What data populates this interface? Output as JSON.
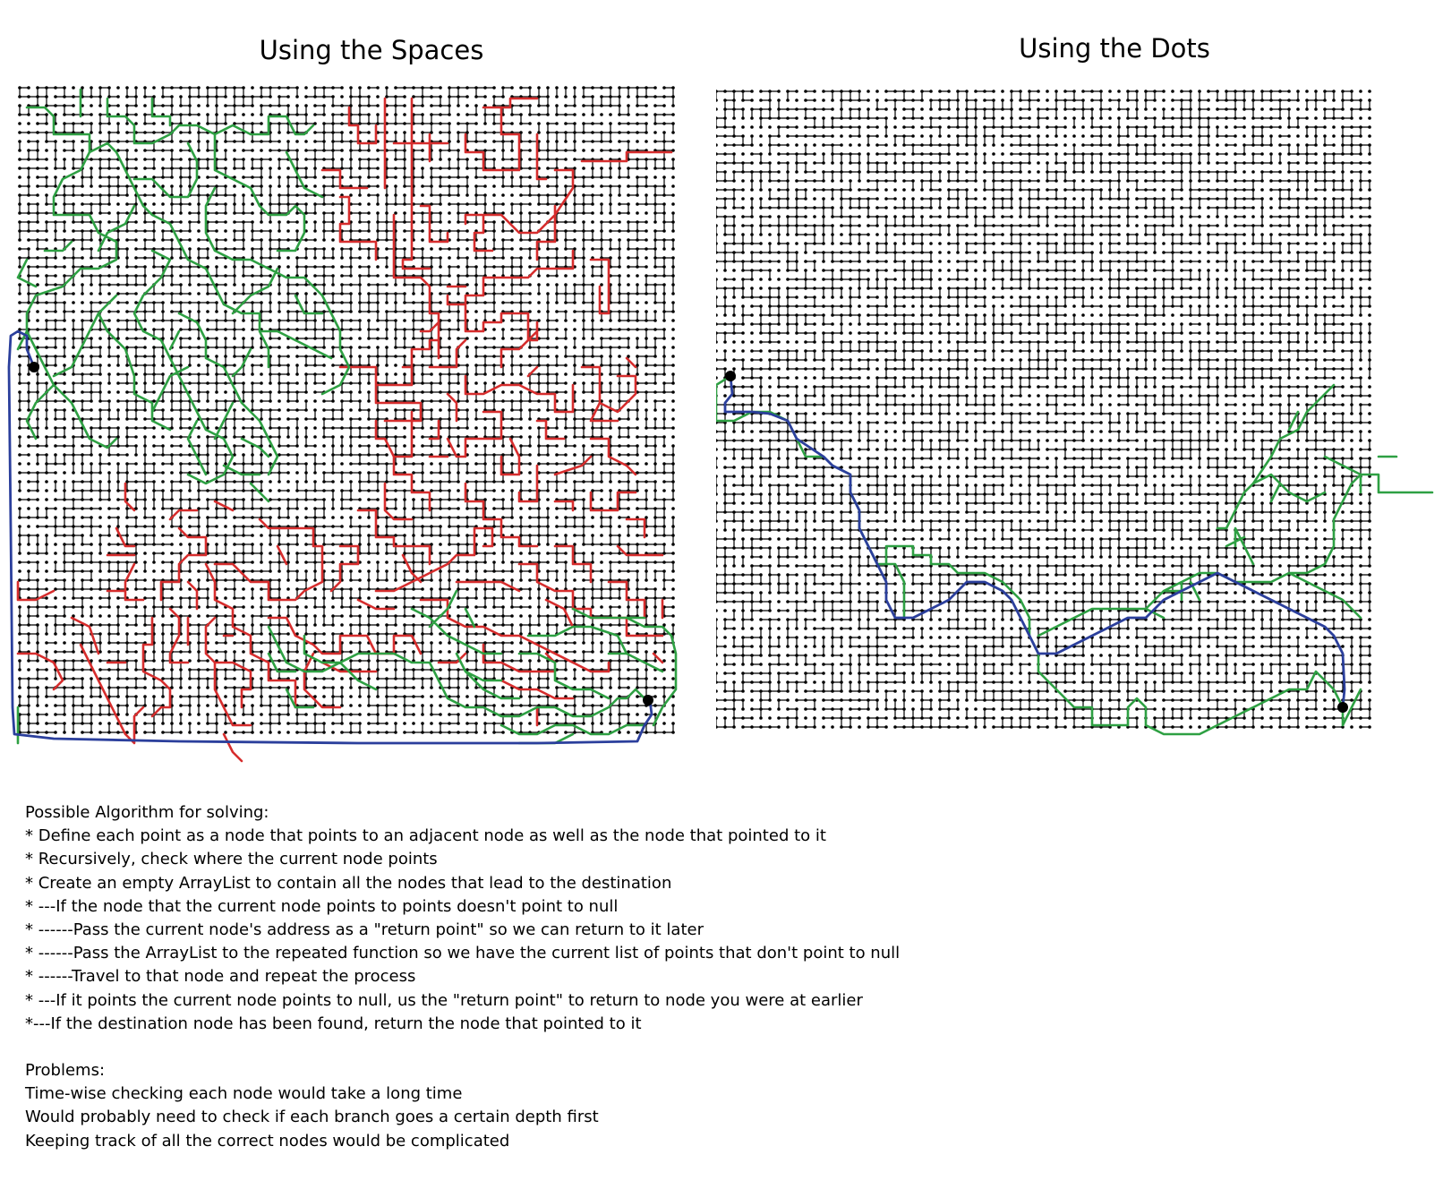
{
  "panels": {
    "left_title": "Using the Spaces",
    "right_title": "Using the Dots"
  },
  "legend_colors": {
    "grid": "#000000",
    "dead_end_paths": "#d62d2d",
    "explored_paths": "#2ea043",
    "solution_path": "#2b3f9c"
  },
  "notes": {
    "algorithm_heading": "Possible Algorithm for solving:",
    "algorithm_steps": [
      "* Define each point as a node that points to an adjacent node as well as the node that pointed to it",
      "* Recursively, check where the current node points",
      "* Create an empty ArrayList to contain all the nodes that lead to the destination",
      "* ---If the node that the current node points to points doesn't point to null",
      "* ------Pass the current node's address as a \"return point\" so we can return to it later",
      "* ------Pass the ArrayList to the repeated function so we have the current list of points that don't point to null",
      "* ------Travel to that node and repeat the process",
      "* ---If it points the current node points to null, us the \"return point\" to return to node you were at earlier",
      "*---If the destination node has been found, return the node that pointed to it"
    ],
    "problems_heading": "Problems:",
    "problems": [
      "Time-wise checking each node would take a long time",
      "Would probably need to check if each branch goes a certain depth first",
      "Keeping track of all the correct nodes would be complicated"
    ]
  }
}
